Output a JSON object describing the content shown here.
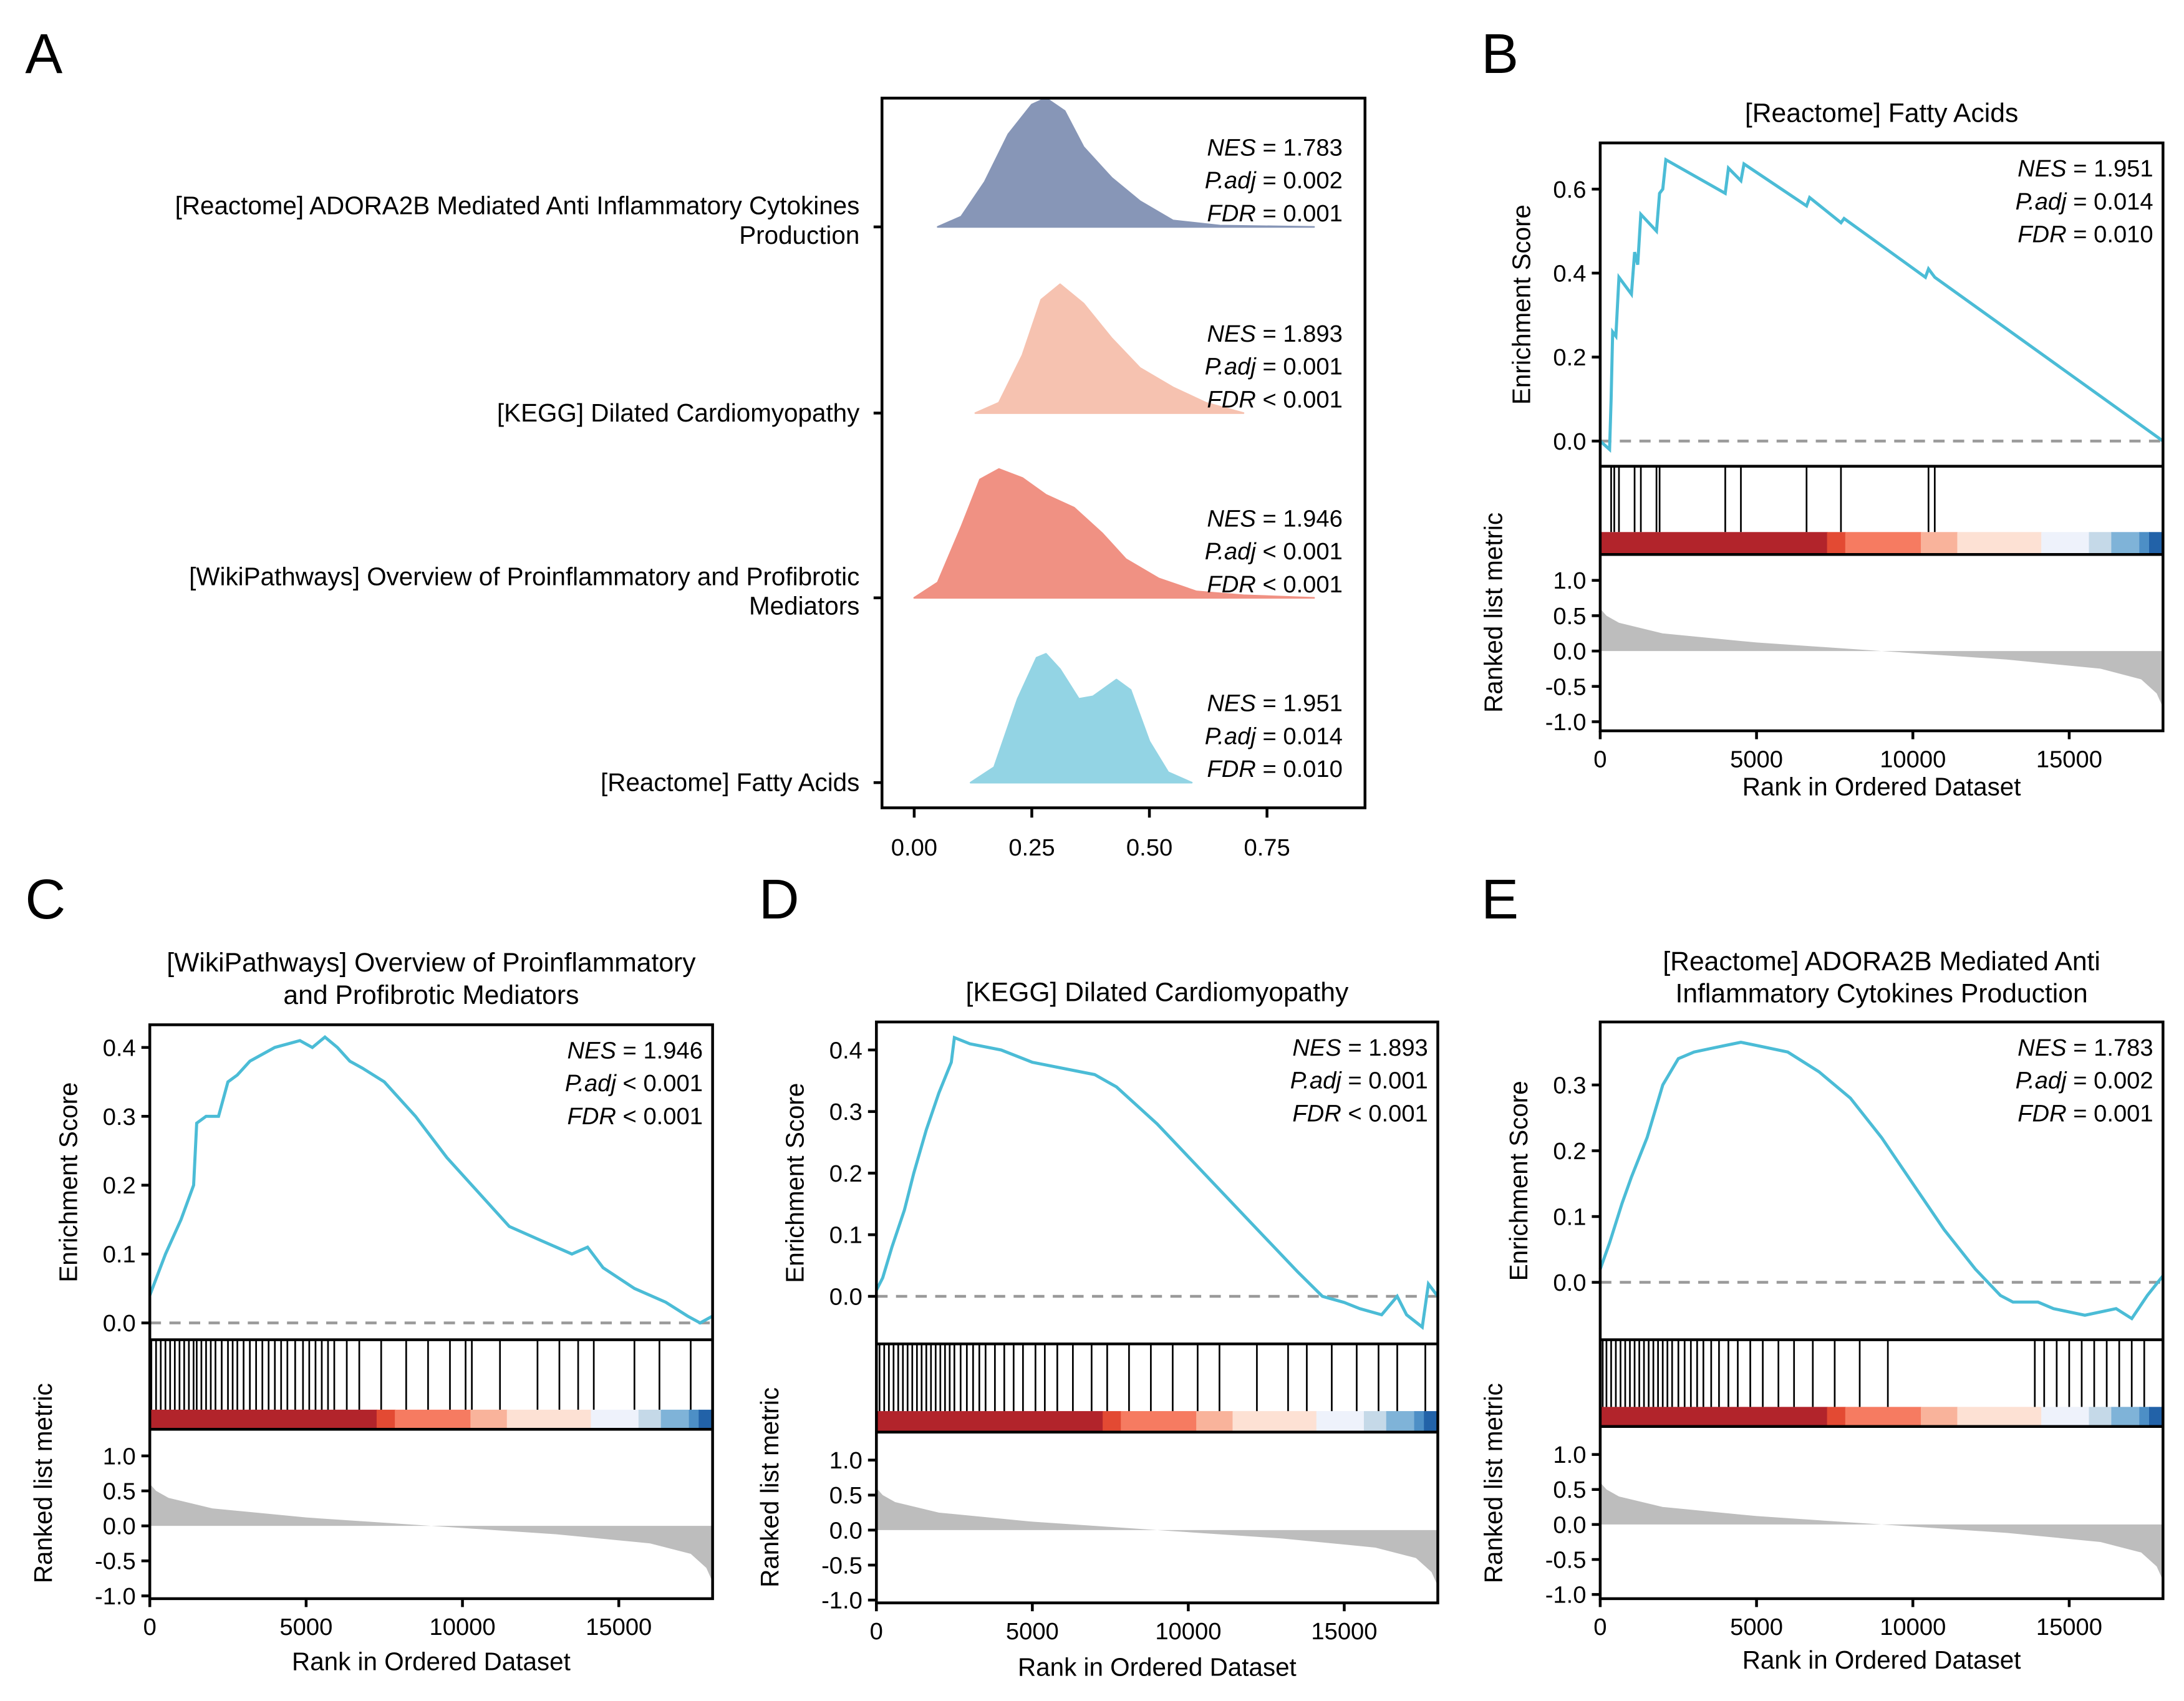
{
  "panel_letters": [
    "A",
    "B",
    "C",
    "D",
    "E"
  ],
  "chart_data": [
    {
      "id": "A",
      "type": "ridgeline",
      "x_ticks": [
        "0.00",
        "0.25",
        "0.50",
        "0.75"
      ],
      "x_tick_values": [
        0,
        0.25,
        0.5,
        0.75
      ],
      "xlim": [
        -0.07,
        0.96
      ],
      "rows": [
        {
          "label_lines": [
            "[Reactome] ADORA2B Mediated Anti Inflammatory Cytokines",
            "Production"
          ],
          "color": "#8796b7",
          "density": [
            [
              0.05,
              0
            ],
            [
              0.1,
              0.08
            ],
            [
              0.15,
              0.35
            ],
            [
              0.2,
              0.72
            ],
            [
              0.25,
              0.95
            ],
            [
              0.28,
              1.0
            ],
            [
              0.32,
              0.9
            ],
            [
              0.36,
              0.62
            ],
            [
              0.42,
              0.38
            ],
            [
              0.48,
              0.2
            ],
            [
              0.55,
              0.05
            ],
            [
              0.65,
              0.01
            ],
            [
              0.85,
              0
            ]
          ],
          "nes": "1.783",
          "padj_op": "=",
          "padj": "0.002",
          "fdr_op": "=",
          "fdr": "0.001"
        },
        {
          "label_lines": [
            "[KEGG] Dilated Cardiomyopathy"
          ],
          "color": "#f6c2b0",
          "density": [
            [
              0.13,
              0
            ],
            [
              0.18,
              0.08
            ],
            [
              0.23,
              0.45
            ],
            [
              0.27,
              0.88
            ],
            [
              0.31,
              1.0
            ],
            [
              0.36,
              0.85
            ],
            [
              0.42,
              0.58
            ],
            [
              0.48,
              0.35
            ],
            [
              0.55,
              0.2
            ],
            [
              0.62,
              0.08
            ],
            [
              0.7,
              0
            ]
          ],
          "nes": "1.893",
          "padj_op": "=",
          "padj": "0.001",
          "fdr_op": "<",
          "fdr": "0.001"
        },
        {
          "label_lines": [
            "[WikiPathways] Overview of Proinflammatory and Profibrotic",
            "Mediators"
          ],
          "color": "#f09183",
          "density": [
            [
              0.0,
              0
            ],
            [
              0.05,
              0.12
            ],
            [
              0.1,
              0.55
            ],
            [
              0.14,
              0.92
            ],
            [
              0.18,
              1.0
            ],
            [
              0.23,
              0.93
            ],
            [
              0.28,
              0.8
            ],
            [
              0.34,
              0.7
            ],
            [
              0.4,
              0.5
            ],
            [
              0.45,
              0.3
            ],
            [
              0.52,
              0.15
            ],
            [
              0.6,
              0.05
            ],
            [
              0.7,
              0.02
            ],
            [
              0.85,
              0
            ]
          ],
          "nes": "1.946",
          "padj_op": "<",
          "padj": "0.001",
          "fdr_op": "<",
          "fdr": "0.001"
        },
        {
          "label_lines": [
            "[Reactome] Fatty Acids"
          ],
          "color": "#93d4e4",
          "density": [
            [
              0.12,
              0
            ],
            [
              0.17,
              0.12
            ],
            [
              0.22,
              0.65
            ],
            [
              0.26,
              0.97
            ],
            [
              0.28,
              1.0
            ],
            [
              0.31,
              0.88
            ],
            [
              0.35,
              0.65
            ],
            [
              0.38,
              0.67
            ],
            [
              0.43,
              0.8
            ],
            [
              0.46,
              0.72
            ],
            [
              0.5,
              0.32
            ],
            [
              0.54,
              0.08
            ],
            [
              0.59,
              0
            ]
          ],
          "nes": "1.951",
          "padj_op": "=",
          "padj": "0.014",
          "fdr_op": "=",
          "fdr": "0.010"
        }
      ]
    },
    {
      "id": "B",
      "type": "gsea",
      "title_lines": [
        "[Reactome] Fatty Acids"
      ],
      "ylabel": "Enrichment Score",
      "ylabel2": "Ranked list metric",
      "xlabel": "Rank in Ordered Dataset",
      "es_ticks": [
        "0.0",
        "0.2",
        "0.4",
        "0.6"
      ],
      "es_tick_values": [
        0,
        0.2,
        0.4,
        0.6
      ],
      "nes": "1.951",
      "padj_op": "=",
      "padj": "0.014",
      "fdr_op": "=",
      "fdr": "0.010",
      "es_curve": [
        [
          0,
          0.0
        ],
        [
          300,
          -0.02
        ],
        [
          350,
          0.1
        ],
        [
          400,
          0.26
        ],
        [
          500,
          0.25
        ],
        [
          600,
          0.39
        ],
        [
          1000,
          0.35
        ],
        [
          1100,
          0.45
        ],
        [
          1200,
          0.42
        ],
        [
          1300,
          0.54
        ],
        [
          1800,
          0.5
        ],
        [
          1900,
          0.59
        ],
        [
          2000,
          0.6
        ],
        [
          2100,
          0.67
        ],
        [
          4000,
          0.59
        ],
        [
          4100,
          0.65
        ],
        [
          4500,
          0.62
        ],
        [
          4600,
          0.66
        ],
        [
          6600,
          0.56
        ],
        [
          6700,
          0.58
        ],
        [
          7700,
          0.52
        ],
        [
          7800,
          0.53
        ],
        [
          10400,
          0.39
        ],
        [
          10500,
          0.41
        ],
        [
          10700,
          0.39
        ],
        [
          18000,
          0.0
        ]
      ],
      "hits": [
        350,
        450,
        600,
        1100,
        1300,
        1800,
        1900,
        4000,
        4500,
        6600,
        7700,
        10500,
        10700
      ]
    },
    {
      "id": "C",
      "type": "gsea",
      "title_lines": [
        "[WikiPathways] Overview of Proinflammatory",
        "and Profibrotic Mediators"
      ],
      "ylabel": "Enrichment Score",
      "ylabel2": "Ranked list metric",
      "xlabel": "Rank in Ordered Dataset",
      "es_ticks": [
        "0.0",
        "0.1",
        "0.2",
        "0.3",
        "0.4"
      ],
      "es_tick_values": [
        0,
        0.1,
        0.2,
        0.3,
        0.4
      ],
      "nes": "1.946",
      "padj_op": "<",
      "padj": "0.001",
      "fdr_op": "<",
      "fdr": "0.001",
      "es_curve": [
        [
          0,
          0.04
        ],
        [
          500,
          0.1
        ],
        [
          1000,
          0.15
        ],
        [
          1400,
          0.2
        ],
        [
          1500,
          0.29
        ],
        [
          1800,
          0.3
        ],
        [
          2200,
          0.3
        ],
        [
          2500,
          0.35
        ],
        [
          2800,
          0.36
        ],
        [
          3200,
          0.38
        ],
        [
          4000,
          0.4
        ],
        [
          4800,
          0.41
        ],
        [
          5200,
          0.4
        ],
        [
          5600,
          0.415
        ],
        [
          6000,
          0.4
        ],
        [
          6400,
          0.38
        ],
        [
          6800,
          0.37
        ],
        [
          7500,
          0.35
        ],
        [
          8500,
          0.3
        ],
        [
          9500,
          0.24
        ],
        [
          10500,
          0.19
        ],
        [
          11500,
          0.14
        ],
        [
          12500,
          0.12
        ],
        [
          13500,
          0.1
        ],
        [
          14000,
          0.11
        ],
        [
          14500,
          0.08
        ],
        [
          15500,
          0.05
        ],
        [
          16500,
          0.03
        ],
        [
          17200,
          0.01
        ],
        [
          17600,
          0.0
        ],
        [
          18000,
          0.01
        ]
      ],
      "hits": [
        50,
        200,
        350,
        500,
        650,
        800,
        950,
        1100,
        1250,
        1400,
        1500,
        1650,
        1800,
        1950,
        2100,
        2300,
        2500,
        2650,
        2800,
        3000,
        3200,
        3400,
        3600,
        3800,
        4000,
        4200,
        4400,
        4650,
        4900,
        5100,
        5300,
        5500,
        5700,
        5900,
        6300,
        6700,
        7400,
        8200,
        8900,
        9600,
        10100,
        10300,
        11200,
        12400,
        13100,
        13700,
        14200,
        15500,
        16300,
        17300
      ]
    },
    {
      "id": "D",
      "type": "gsea",
      "title_lines": [
        "[KEGG] Dilated Cardiomyopathy"
      ],
      "ylabel": "Enrichment Score",
      "ylabel2": "Ranked list metric",
      "xlabel": "Rank in Ordered Dataset",
      "es_ticks": [
        "0.0",
        "0.1",
        "0.2",
        "0.3",
        "0.4"
      ],
      "es_tick_values": [
        0,
        0.1,
        0.2,
        0.3,
        0.4
      ],
      "nes": "1.893",
      "padj_op": "=",
      "padj": "0.001",
      "fdr_op": "<",
      "fdr": "0.001",
      "es_curve": [
        [
          0,
          0.01
        ],
        [
          200,
          0.03
        ],
        [
          500,
          0.08
        ],
        [
          900,
          0.14
        ],
        [
          1200,
          0.2
        ],
        [
          1600,
          0.27
        ],
        [
          2000,
          0.33
        ],
        [
          2400,
          0.38
        ],
        [
          2500,
          0.42
        ],
        [
          3000,
          0.41
        ],
        [
          4000,
          0.4
        ],
        [
          5000,
          0.38
        ],
        [
          6000,
          0.37
        ],
        [
          7000,
          0.36
        ],
        [
          7700,
          0.34
        ],
        [
          9000,
          0.28
        ],
        [
          10500,
          0.2
        ],
        [
          12000,
          0.12
        ],
        [
          13500,
          0.04
        ],
        [
          14300,
          0.0
        ],
        [
          15000,
          -0.01
        ],
        [
          15500,
          -0.02
        ],
        [
          16200,
          -0.03
        ],
        [
          16700,
          0.0
        ],
        [
          17000,
          -0.03
        ],
        [
          17500,
          -0.05
        ],
        [
          17700,
          0.02
        ],
        [
          18000,
          0.0
        ]
      ],
      "hits": [
        100,
        250,
        400,
        550,
        700,
        850,
        1000,
        1150,
        1300,
        1450,
        1600,
        1750,
        1900,
        2050,
        2200,
        2350,
        2500,
        2700,
        2900,
        3100,
        3300,
        3500,
        3800,
        4100,
        4400,
        4700,
        5100,
        5400,
        5800,
        6300,
        6900,
        7400,
        8100,
        8800,
        9500,
        10300,
        11000,
        12200,
        13200,
        13800,
        14600,
        15400,
        16100,
        16700,
        17600
      ]
    },
    {
      "id": "E",
      "type": "gsea",
      "title_lines": [
        "[Reactome] ADORA2B Mediated Anti",
        "Inflammatory Cytokines Production"
      ],
      "ylabel": "Enrichment Score",
      "ylabel2": "Ranked list metric",
      "xlabel": "Rank in Ordered Dataset",
      "es_ticks": [
        "0.0",
        "0.1",
        "0.2",
        "0.3"
      ],
      "es_tick_values": [
        0,
        0.1,
        0.2,
        0.3
      ],
      "nes": "1.783",
      "padj_op": "=",
      "padj": "0.002",
      "fdr_op": "=",
      "fdr": "0.001",
      "es_curve": [
        [
          0,
          0.02
        ],
        [
          300,
          0.06
        ],
        [
          700,
          0.12
        ],
        [
          1000,
          0.16
        ],
        [
          1500,
          0.22
        ],
        [
          2000,
          0.3
        ],
        [
          2500,
          0.34
        ],
        [
          3000,
          0.35
        ],
        [
          3500,
          0.355
        ],
        [
          4000,
          0.36
        ],
        [
          4500,
          0.365
        ],
        [
          5000,
          0.36
        ],
        [
          6000,
          0.35
        ],
        [
          7000,
          0.32
        ],
        [
          8000,
          0.28
        ],
        [
          9000,
          0.22
        ],
        [
          10000,
          0.15
        ],
        [
          11000,
          0.08
        ],
        [
          12000,
          0.02
        ],
        [
          12800,
          -0.02
        ],
        [
          13200,
          -0.03
        ],
        [
          14000,
          -0.03
        ],
        [
          14500,
          -0.04
        ],
        [
          15500,
          -0.05
        ],
        [
          16500,
          -0.04
        ],
        [
          17000,
          -0.055
        ],
        [
          17500,
          -0.02
        ],
        [
          18000,
          0.01
        ]
      ],
      "hits": [
        80,
        200,
        350,
        500,
        650,
        800,
        950,
        1100,
        1250,
        1400,
        1550,
        1700,
        1850,
        2000,
        2150,
        2300,
        2500,
        2700,
        2900,
        3100,
        3300,
        3550,
        3800,
        4100,
        4400,
        4800,
        5200,
        5700,
        6200,
        6800,
        7500,
        8300,
        9200,
        13900,
        14200,
        14600,
        15000,
        15400,
        15800,
        16200,
        16600,
        17000,
        17400
      ]
    }
  ],
  "shared": {
    "x_ticks": [
      "0",
      "5000",
      "10000",
      "15000"
    ],
    "x_tick_values": [
      0,
      5000,
      10000,
      15000
    ],
    "xlim": [
      0,
      18000
    ],
    "rank_ticks": [
      "1.0",
      "0.5",
      "0.0",
      "-0.5",
      "-1.0"
    ],
    "rank_tick_values": [
      1,
      0.5,
      0,
      -0.5,
      -1
    ],
    "ranked_metric": [
      [
        0,
        0.6
      ],
      [
        200,
        0.5
      ],
      [
        600,
        0.4
      ],
      [
        2000,
        0.25
      ],
      [
        5000,
        0.12
      ],
      [
        9000,
        0.0
      ],
      [
        13000,
        -0.12
      ],
      [
        16000,
        -0.25
      ],
      [
        17300,
        -0.4
      ],
      [
        17800,
        -0.6
      ],
      [
        18000,
        -0.8
      ]
    ],
    "rank_gradient": [
      [
        0,
        7255,
        "#b2242b"
      ],
      [
        7255,
        7837,
        "#e34a33"
      ],
      [
        7837,
        10255,
        "#f67b61"
      ],
      [
        10255,
        11420,
        "#f9b39b"
      ],
      [
        11420,
        14107,
        "#fde1d4"
      ],
      [
        14107,
        15630,
        "#eef2fb"
      ],
      [
        15630,
        16346,
        "#c5d9e8"
      ],
      [
        16346,
        17242,
        "#7fb3d8"
      ],
      [
        17242,
        17555,
        "#4d8fc6"
      ],
      [
        17555,
        18000,
        "#2262a8"
      ]
    ],
    "es_color": "#4bbcd6",
    "hit_color": "#000000",
    "metric_fill": "#bdbdbd",
    "zero_line_color": "#9a9a9a",
    "stat_labels": {
      "nes": "NES",
      "padj": "P.adj",
      "fdr": "FDR"
    }
  }
}
